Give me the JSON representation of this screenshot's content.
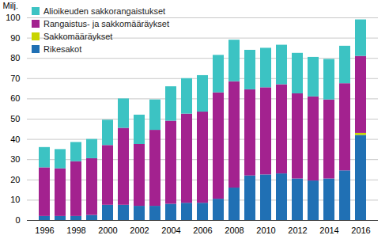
{
  "chart_data": {
    "type": "bar",
    "stacked": true,
    "y_label": "Milj.",
    "categories": [
      "1996",
      null,
      "1998",
      null,
      "2000",
      null,
      "2002",
      null,
      "2004",
      null,
      "2006",
      null,
      "2008",
      null,
      "2010",
      null,
      "2012",
      null,
      "2014",
      null,
      "2016"
    ],
    "series": [
      {
        "name": "Rikesakot",
        "color": "#2070b4",
        "values": [
          2,
          2,
          2,
          2.5,
          7.5,
          7.5,
          7,
          7,
          8,
          8.5,
          8.5,
          10.5,
          16,
          22,
          22.5,
          23,
          20.5,
          19.5,
          20.5,
          24.5,
          42
        ]
      },
      {
        "name": "Sakkomääräykset",
        "color": "#c8d400",
        "values": [
          0,
          0,
          0,
          0,
          0,
          0,
          0,
          0,
          0,
          0,
          0,
          0,
          0,
          0,
          0,
          0,
          0,
          0,
          0,
          0,
          1
        ]
      },
      {
        "name": "Rangaistus- ja sakkomääräykset",
        "color": "#a3228f",
        "values": [
          24,
          23.5,
          27,
          28,
          29.5,
          38,
          30.5,
          37.5,
          41,
          44,
          45,
          52.5,
          52.5,
          42.5,
          43,
          44,
          42,
          41.5,
          39,
          43,
          38
        ]
      },
      {
        "name": "Alioikeuden sakkorangaistukset",
        "color": "#3cc3c3",
        "values": [
          10,
          9.5,
          9.5,
          9.5,
          12.5,
          14.5,
          14.5,
          15,
          17,
          17.5,
          18,
          18.5,
          20.5,
          19.5,
          19.5,
          19.5,
          20,
          19.5,
          20,
          18.5,
          18
        ]
      }
    ],
    "ylim": [
      0,
      100
    ],
    "yticks": [
      0,
      10,
      20,
      30,
      40,
      50,
      60,
      70,
      80,
      90,
      100
    ],
    "grid": true,
    "legend": "top-left"
  }
}
